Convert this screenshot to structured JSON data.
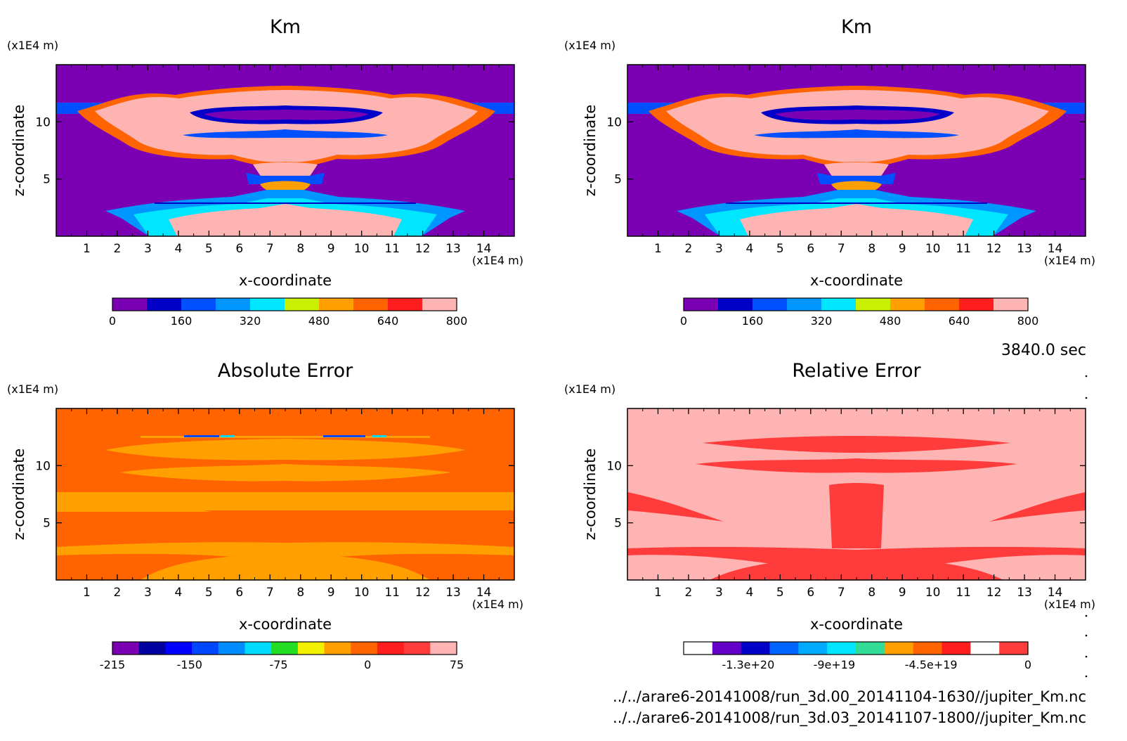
{
  "time_label": "3840.0 sec",
  "files": [
    "../../arare6-20141008/run_3d.00_20141104-1630//jupiter_Km.nc",
    "../../arare6-20141008/run_3d.03_20141107-1800//jupiter_Km.nc"
  ],
  "colors": {
    "km": [
      "#7b00b4",
      "#0000c8",
      "#0050ff",
      "#0096ff",
      "#00e6ff",
      "#c8f000",
      "#ffa000",
      "#ff6400",
      "#ff1e1e",
      "#ffb4b4"
    ],
    "abs": [
      "#7b00b4",
      "#0000a0",
      "#0000ff",
      "#0046ff",
      "#008cff",
      "#00dcff",
      "#22dd22",
      "#f0f000",
      "#ffa000",
      "#ff6400",
      "#ff1e1e",
      "#ff3c3c",
      "#ffb4b4"
    ],
    "rel": [
      "#ffffff",
      "#6400c8",
      "#0000c8",
      "#0064ff",
      "#00aaff",
      "#00e6ff",
      "#32dc96",
      "#ffa000",
      "#ff6400",
      "#ff1e1e",
      "#ffffff",
      "#ff3c3c"
    ]
  },
  "chart_data": [
    {
      "type": "heatmap",
      "title": "Km",
      "xlabel": "x-coordinate",
      "ylabel": "z-coordinate",
      "x_unit": "(x1E4 m)",
      "y_unit": "(x1E4 m)",
      "xlim": [
        0,
        15
      ],
      "ylim": [
        0,
        15
      ],
      "xticks": [
        "1",
        "2",
        "3",
        "4",
        "5",
        "6",
        "7",
        "8",
        "9",
        "10",
        "11",
        "12",
        "13",
        "14"
      ],
      "yticks": [
        {
          "v": 5,
          "label": "5"
        },
        {
          "v": 10,
          "label": "10"
        }
      ],
      "colorbar": {
        "range": [
          0,
          800
        ],
        "ticks": [
          "0",
          "160",
          "320",
          "480",
          "640",
          "800"
        ]
      }
    },
    {
      "type": "heatmap",
      "title": "Km",
      "xlabel": "x-coordinate",
      "ylabel": "z-coordinate",
      "x_unit": "(x1E4 m)",
      "y_unit": "(x1E4 m)",
      "xlim": [
        0,
        15
      ],
      "ylim": [
        0,
        15
      ],
      "xticks": [
        "1",
        "2",
        "3",
        "4",
        "5",
        "6",
        "7",
        "8",
        "9",
        "10",
        "11",
        "12",
        "13",
        "14"
      ],
      "yticks": [
        {
          "v": 5,
          "label": "5"
        },
        {
          "v": 10,
          "label": "10"
        }
      ],
      "colorbar": {
        "range": [
          0,
          800
        ],
        "ticks": [
          "0",
          "160",
          "320",
          "480",
          "640",
          "800"
        ]
      }
    },
    {
      "type": "heatmap",
      "title": "Absolute Error",
      "xlabel": "x-coordinate",
      "ylabel": "z-coordinate",
      "x_unit": "(x1E4 m)",
      "y_unit": "(x1E4 m)",
      "xlim": [
        0,
        15
      ],
      "ylim": [
        0,
        15
      ],
      "xticks": [
        "1",
        "2",
        "3",
        "4",
        "5",
        "6",
        "7",
        "8",
        "9",
        "10",
        "11",
        "12",
        "13",
        "14"
      ],
      "yticks": [
        {
          "v": 5,
          "label": "5"
        },
        {
          "v": 10,
          "label": "10"
        }
      ],
      "colorbar": {
        "range": [
          -215,
          75
        ],
        "ticks": [
          "-215",
          "-150",
          "-75",
          "0",
          "75"
        ]
      }
    },
    {
      "type": "heatmap",
      "title": "Relative Error",
      "xlabel": "x-coordinate",
      "ylabel": "z-coordinate",
      "x_unit": "(x1E4 m)",
      "y_unit": "(x1E4 m)",
      "xlim": [
        0,
        15
      ],
      "ylim": [
        0,
        15
      ],
      "xticks": [
        "1",
        "2",
        "3",
        "4",
        "5",
        "6",
        "7",
        "8",
        "9",
        "10",
        "11",
        "12",
        "13",
        "14"
      ],
      "yticks": [
        {
          "v": 5,
          "label": "5"
        },
        {
          "v": 10,
          "label": "10"
        }
      ],
      "colorbar": {
        "range": [
          -1.6e+20,
          0
        ],
        "ticks": [
          "-1.3e+20",
          "-9e+19",
          "-4.5e+19",
          "0"
        ]
      }
    }
  ]
}
